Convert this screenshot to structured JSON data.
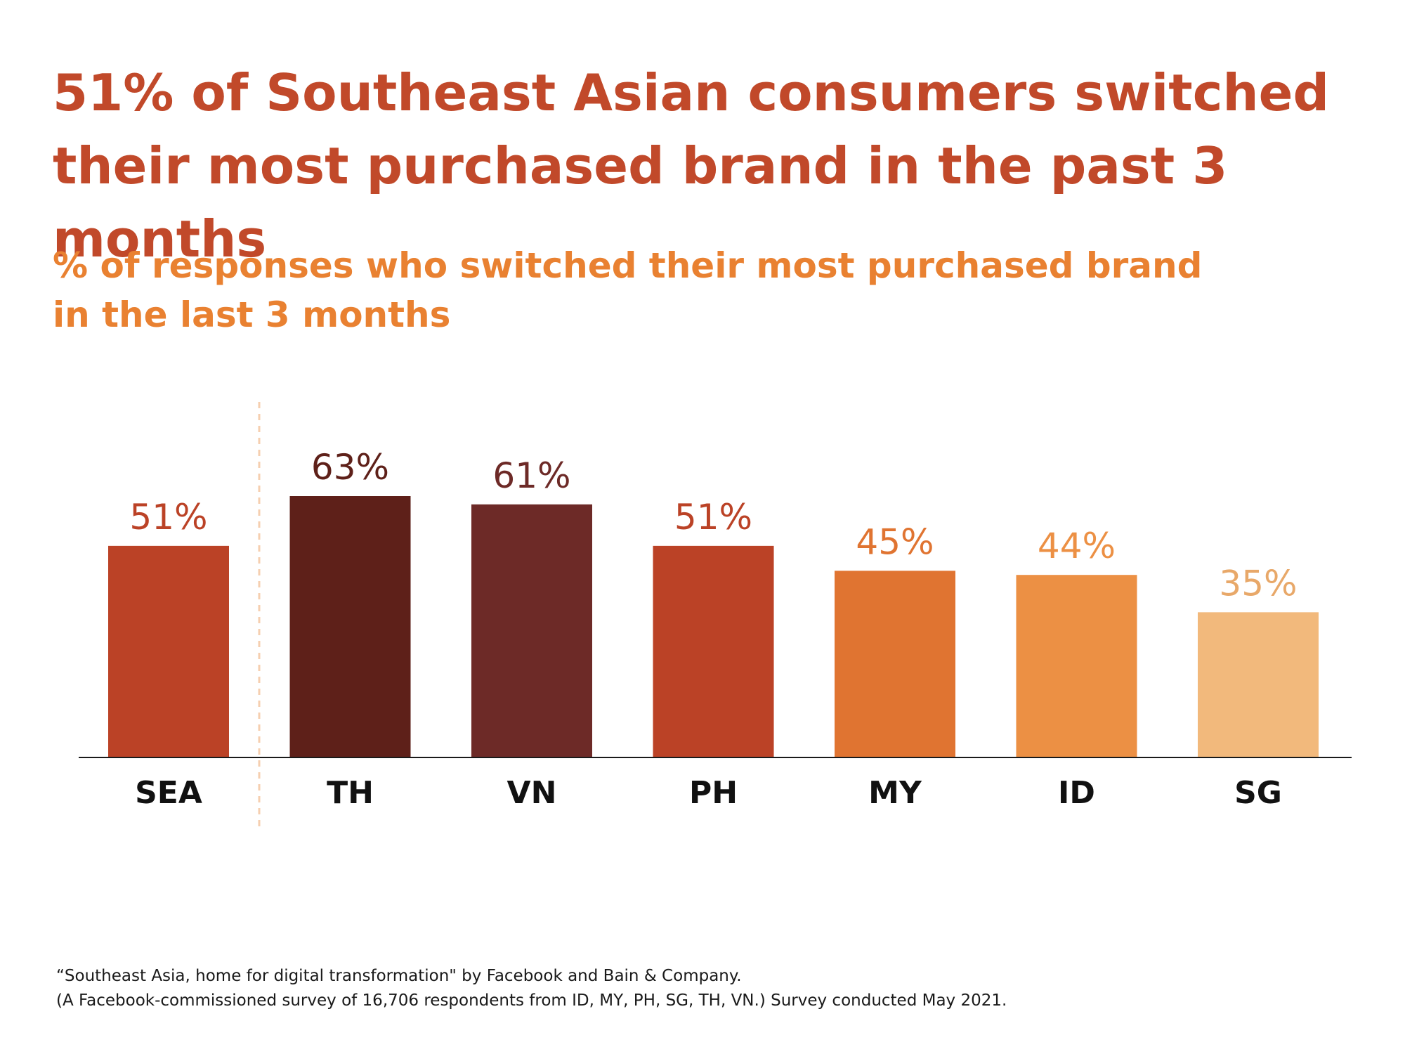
{
  "header": {
    "title_line1": "51% of Southeast Asian consumers switched",
    "title_line2": "their most purchased brand in the past 3 months",
    "subtitle_line1": "% of responses who switched their most purchased brand",
    "subtitle_line2": "in the last 3 months"
  },
  "footnote": {
    "line1": "“Southeast Asia, home for digital transformation\" by Facebook and Bain & Company.",
    "line2": "(A Facebook-commissioned survey of 16,706 respondents from ID, MY, PH, SG, TH, VN.) Survey conducted May 2021."
  },
  "colors": {
    "title": "#c1492a",
    "subtitle": "#e98131",
    "divider": "#f6cfb0",
    "axis": "#1a1a1a",
    "category_label": "#111111"
  },
  "chart_data": {
    "type": "bar",
    "categories": [
      "SEA",
      "TH",
      "VN",
      "PH",
      "MY",
      "ID",
      "SG"
    ],
    "values": [
      51,
      63,
      61,
      51,
      45,
      44,
      35
    ],
    "data_labels": [
      "51%",
      "63%",
      "61%",
      "51%",
      "45%",
      "44%",
      "35%"
    ],
    "bar_colors": [
      "#bb4226",
      "#5e2019",
      "#6d2a27",
      "#bb4226",
      "#e07431",
      "#ec9044",
      "#f2b97c"
    ],
    "label_colors": [
      "#bb4226",
      "#5e2019",
      "#6d2a27",
      "#bb4226",
      "#e07431",
      "#ec9044",
      "#e8a869"
    ],
    "ylim": [
      0,
      63
    ],
    "grid": false,
    "divider_after_category": "SEA"
  }
}
